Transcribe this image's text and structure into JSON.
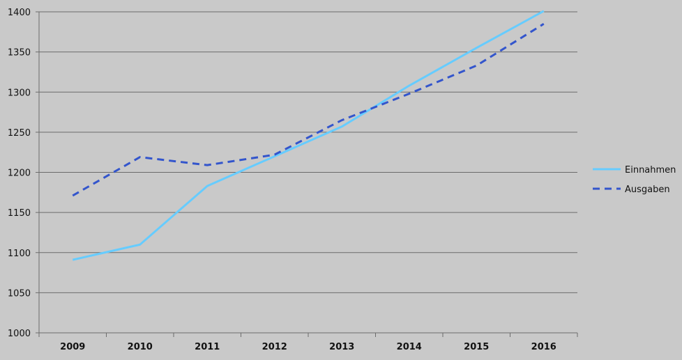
{
  "chart_data": {
    "type": "line",
    "title": "",
    "xlabel": "",
    "ylabel": "",
    "categories": [
      "2009",
      "2010",
      "2011",
      "2012",
      "2013",
      "2014",
      "2015",
      "2016"
    ],
    "ylim": [
      1000,
      1400
    ],
    "yticks": [
      1000,
      1050,
      1100,
      1150,
      1200,
      1250,
      1300,
      1350,
      1400
    ],
    "grid": true,
    "legend_position": "right",
    "series": [
      {
        "name": "Einnahmen",
        "values": [
          1091,
          1110,
          1183,
          1220,
          1257,
          1308,
          1355,
          1401
        ],
        "color": "#66ccff",
        "style": "solid"
      },
      {
        "name": "Ausgaben",
        "values": [
          1171,
          1219,
          1209,
          1222,
          1265,
          1298,
          1333,
          1385
        ],
        "color": "#3355cc",
        "style": "dashed"
      }
    ]
  },
  "colors": {
    "background": "#c9c9c9",
    "gridline": "#6b6b6b",
    "axis": "#6b6b6b"
  }
}
